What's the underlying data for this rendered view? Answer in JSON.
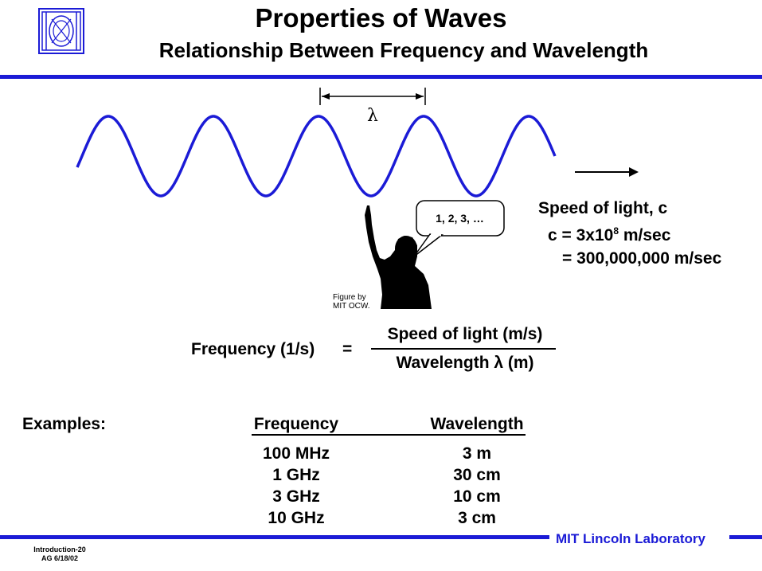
{
  "header": {
    "title": "Properties of Waves",
    "subtitle": "Relationship Between Frequency and Wavelength"
  },
  "figure": {
    "lambda_symbol": "λ",
    "bubble_text": "1, 2, 3, …",
    "credit_line1": "Figure by",
    "credit_line2": "MIT OCW."
  },
  "speed": {
    "heading": "Speed of light, c",
    "c_prefix": "c = 3x10",
    "c_exp": "8",
    "c_unit": " m/sec",
    "full": "= 300,000,000 m/sec"
  },
  "equation": {
    "lhs": "Frequency (1/s)",
    "equals": "=",
    "numerator": "Speed of light (m/s)",
    "denominator": "Wavelength λ (m)"
  },
  "examples": {
    "label": "Examples:",
    "headers": [
      "Frequency",
      "Wavelength"
    ],
    "rows": [
      [
        "100 MHz",
        "3 m"
      ],
      [
        "1 GHz",
        "30 cm"
      ],
      [
        "3 GHz",
        "10 cm"
      ],
      [
        "10 GHz",
        "3 cm"
      ]
    ]
  },
  "footer": {
    "lab": "MIT Lincoln Laboratory",
    "slide_id": "Introduction-20",
    "date": "AG 6/18/02"
  },
  "colors": {
    "accent": "#1b1bd6",
    "wave": "#1b1bd6",
    "text": "#000000"
  }
}
